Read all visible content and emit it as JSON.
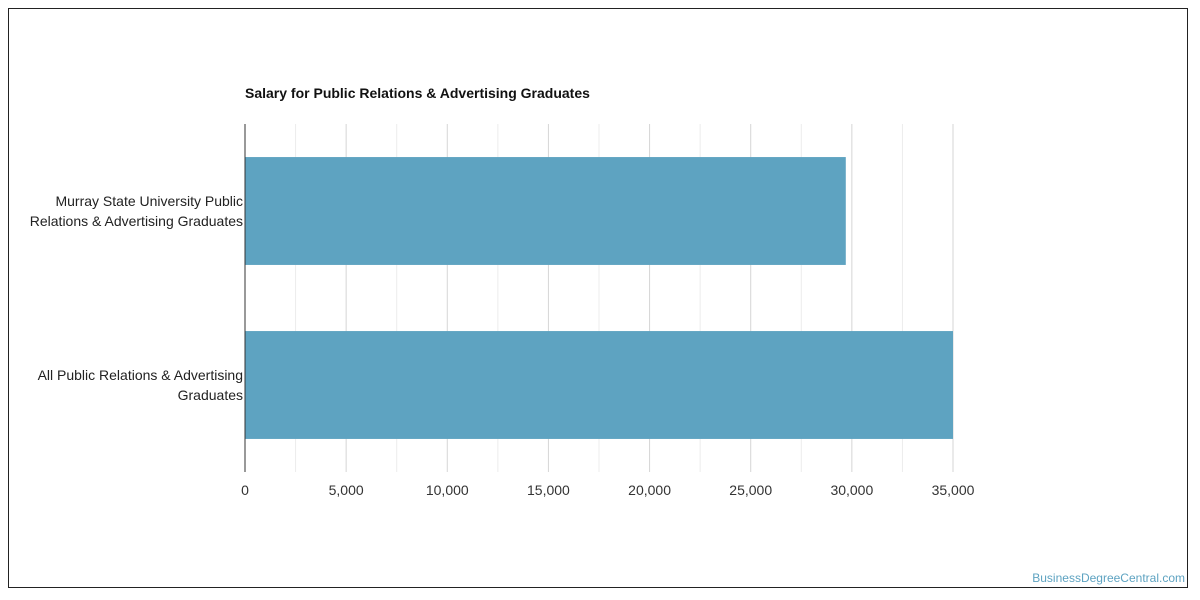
{
  "chart_data": {
    "type": "bar",
    "orientation": "horizontal",
    "title": "Salary for Public Relations & Advertising Graduates",
    "xlabel": "",
    "ylabel": "",
    "categories": [
      [
        "Murray State University Public",
        "Relations & Advertising Graduates"
      ],
      [
        "All Public Relations & Advertising",
        "Graduates"
      ]
    ],
    "values": [
      29700,
      35000
    ],
    "xlim": [
      0,
      35000
    ],
    "xticks": [
      0,
      5000,
      10000,
      15000,
      20000,
      25000,
      30000,
      35000
    ],
    "xtick_labels": [
      "0",
      "5,000",
      "10,000",
      "15,000",
      "20,000",
      "25,000",
      "30,000",
      "35,000"
    ],
    "grid": true,
    "legend": "none",
    "bar_color": "#5ea3c1"
  },
  "watermark": "BusinessDegreeCentral.com"
}
